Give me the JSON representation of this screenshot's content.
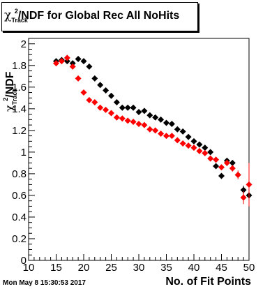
{
  "title": {
    "symbol": "χ",
    "superscript": "2",
    "subscript": "Track",
    "text": "/NDF for Global Rec All NoHits"
  },
  "timestamp": "Mon May  8 15:30:53 2017",
  "chart_data": {
    "type": "scatter",
    "xlabel": "No. of Fit Points",
    "ylabel": {
      "symbol": "χ",
      "superscript": "2",
      "subscript": "Track",
      "text": "/NDF"
    },
    "xlim": [
      10,
      50
    ],
    "ylim": [
      0,
      2.05
    ],
    "x_ticks": [
      "10",
      "15",
      "20",
      "25",
      "30",
      "35",
      "40",
      "45",
      "50"
    ],
    "y_ticks": [
      "0",
      "0.2",
      "0.4",
      "0.6",
      "0.8",
      "1",
      "1.2",
      "1.4",
      "1.6",
      "1.8",
      "2"
    ],
    "marker": "diamond",
    "grid": false,
    "legend": "none",
    "series": [
      {
        "color": "#000000",
        "points": [
          {
            "x": 15,
            "y": 1.84
          },
          {
            "x": 16,
            "y": 1.85
          },
          {
            "x": 17,
            "y": 1.84
          },
          {
            "x": 18,
            "y": 1.82
          },
          {
            "x": 19,
            "y": 1.86
          },
          {
            "x": 20,
            "y": 1.84
          },
          {
            "x": 21,
            "y": 1.79
          },
          {
            "x": 22,
            "y": 1.68
          },
          {
            "x": 23,
            "y": 1.62
          },
          {
            "x": 24,
            "y": 1.57
          },
          {
            "x": 25,
            "y": 1.52
          },
          {
            "x": 26,
            "y": 1.46
          },
          {
            "x": 27,
            "y": 1.41
          },
          {
            "x": 28,
            "y": 1.41
          },
          {
            "x": 29,
            "y": 1.41
          },
          {
            "x": 30,
            "y": 1.37
          },
          {
            "x": 31,
            "y": 1.38
          },
          {
            "x": 32,
            "y": 1.34
          },
          {
            "x": 33,
            "y": 1.32
          },
          {
            "x": 34,
            "y": 1.3
          },
          {
            "x": 35,
            "y": 1.27
          },
          {
            "x": 36,
            "y": 1.26
          },
          {
            "x": 37,
            "y": 1.21
          },
          {
            "x": 38,
            "y": 1.19
          },
          {
            "x": 39,
            "y": 1.14
          },
          {
            "x": 40,
            "y": 1.1
          },
          {
            "x": 41,
            "y": 1.07
          },
          {
            "x": 42,
            "y": 1.04
          },
          {
            "x": 43,
            "y": 1.0
          },
          {
            "x": 44,
            "y": 0.87
          },
          {
            "x": 45,
            "y": 0.78
          },
          {
            "x": 46,
            "y": 0.92
          },
          {
            "x": 47,
            "y": 0.9
          },
          {
            "x": 48,
            "y": 0.79
          },
          {
            "x": 49,
            "y": 0.65
          },
          {
            "x": 50,
            "y": 0.6
          }
        ],
        "errors": [
          0,
          0,
          0,
          0,
          0,
          0,
          0,
          0,
          0,
          0,
          0,
          0,
          0,
          0,
          0,
          0,
          0,
          0,
          0,
          0,
          0,
          0,
          0,
          0,
          0,
          0,
          0,
          0,
          0,
          0.02,
          0.02,
          0.02,
          0.02,
          0.02,
          0.04,
          0.08
        ]
      },
      {
        "color": "#ff0000",
        "points": [
          {
            "x": 15,
            "y": 1.82
          },
          {
            "x": 16,
            "y": 1.84
          },
          {
            "x": 17,
            "y": 1.87
          },
          {
            "x": 18,
            "y": 1.79
          },
          {
            "x": 19,
            "y": 1.68
          },
          {
            "x": 20,
            "y": 1.55
          },
          {
            "x": 21,
            "y": 1.48
          },
          {
            "x": 22,
            "y": 1.46
          },
          {
            "x": 23,
            "y": 1.41
          },
          {
            "x": 24,
            "y": 1.39
          },
          {
            "x": 25,
            "y": 1.36
          },
          {
            "x": 26,
            "y": 1.32
          },
          {
            "x": 27,
            "y": 1.31
          },
          {
            "x": 28,
            "y": 1.29
          },
          {
            "x": 29,
            "y": 1.28
          },
          {
            "x": 30,
            "y": 1.26
          },
          {
            "x": 31,
            "y": 1.25
          },
          {
            "x": 32,
            "y": 1.21
          },
          {
            "x": 33,
            "y": 1.2
          },
          {
            "x": 34,
            "y": 1.17
          },
          {
            "x": 35,
            "y": 1.15
          },
          {
            "x": 36,
            "y": 1.15
          },
          {
            "x": 37,
            "y": 1.11
          },
          {
            "x": 38,
            "y": 1.08
          },
          {
            "x": 39,
            "y": 1.06
          },
          {
            "x": 40,
            "y": 1.04
          },
          {
            "x": 41,
            "y": 1.01
          },
          {
            "x": 42,
            "y": 0.99
          },
          {
            "x": 43,
            "y": 0.94
          },
          {
            "x": 44,
            "y": 0.93
          },
          {
            "x": 45,
            "y": 0.86
          },
          {
            "x": 46,
            "y": 0.9
          },
          {
            "x": 47,
            "y": 0.85
          },
          {
            "x": 48,
            "y": 0.79
          },
          {
            "x": 49,
            "y": 0.58
          },
          {
            "x": 50,
            "y": 0.7
          }
        ],
        "errors": [
          0,
          0,
          0,
          0,
          0,
          0,
          0,
          0,
          0,
          0,
          0,
          0,
          0,
          0,
          0,
          0,
          0,
          0,
          0,
          0,
          0,
          0,
          0,
          0,
          0,
          0,
          0,
          0,
          0,
          0.02,
          0.02,
          0.03,
          0.03,
          0.04,
          0.06,
          0.2
        ]
      }
    ]
  }
}
